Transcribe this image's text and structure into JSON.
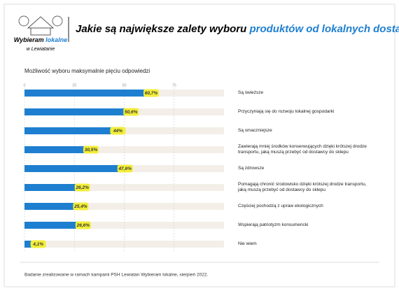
{
  "logo": {
    "line1": "Wybieram",
    "line1_highlight": "lokalne",
    "line2": "w Lewiatanie"
  },
  "chart_data": {
    "type": "hbar",
    "title": "Jakie są największe zalety wyboru",
    "title_highlight": "produktów od lokalnych dostawców",
    "title_end": "?",
    "subtitle": "Możliwość wyboru maksymalnie pięciu odpowiedzi",
    "footnote": "Badanie zrealizowane w ramach kampanii PSH Lewiatan Wybieram lokalne, sierpień 2022.",
    "categories": [
      "Są świeższe",
      "Przyczyniają się do rozwoju lokalnej gospodarki",
      "Są smaczniejsze",
      "Zawierają mniej środków konserwujących dzięki krótszej drodze transportu, jaką muszą przebyć od dostawcy do sklepu",
      "Są zdrowsze",
      "Pomagają chronić środowisko dzięki krótszej drodze transportu, jaką muszą przebyć od dostawcy do sklepu",
      "Częściej pochodzą z upraw ekologicznych",
      "Wspierają patriotyzm konsumencki",
      "Nie wiem"
    ],
    "values": [
      60.7,
      50.6,
      44,
      30.5,
      47.6,
      26.2,
      25.4,
      26.6,
      4.1
    ],
    "value_labels": [
      "60,7%",
      "50,6%",
      "44%",
      "30,5%",
      "47,6%",
      "26,2%",
      "25,4%",
      "26,6%",
      "4,1%"
    ],
    "color": "#1e7fd0",
    "label_color": "#f3ee3a",
    "xlim": [
      0,
      100
    ],
    "xticks": [
      0,
      25,
      50,
      75
    ],
    "grid": true
  }
}
